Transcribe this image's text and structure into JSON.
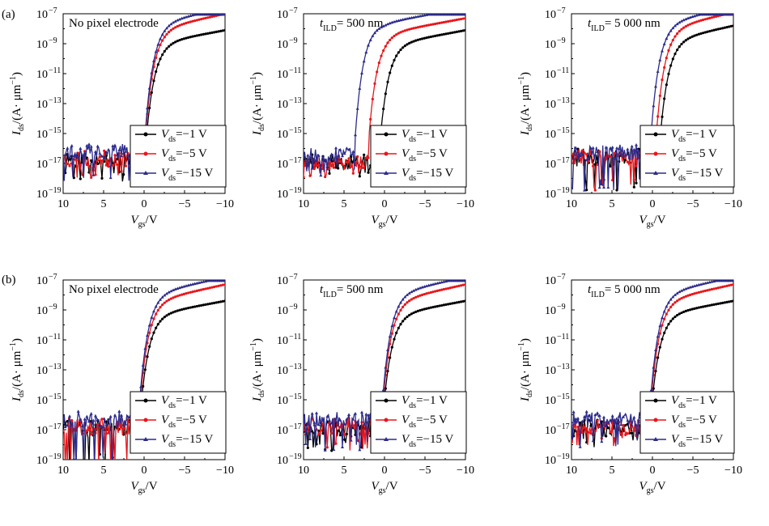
{
  "figure": {
    "row_labels": [
      "(a)",
      "(b)"
    ]
  },
  "chart_data": [
    {
      "type": "line",
      "row": 0,
      "col": 0,
      "title": "No pixel electrode",
      "title_main": "No pixel electrode",
      "title_sub": "",
      "title_tail": "",
      "ylabel_main": "I",
      "ylabel_sub": "ds",
      "ylabel_tail": "/(A· μm",
      "xlabel_main": "V",
      "xlabel_sub": "gs",
      "xlabel_tail": "/V",
      "xlim": [
        10,
        -10
      ],
      "ylim_exp": [
        -19,
        -7
      ],
      "ylog": true,
      "x_reversed": true,
      "xticks": [
        10,
        5,
        0,
        -5,
        -10
      ],
      "xtick_labels": [
        "10",
        "5",
        "0",
        "−5",
        "−10"
      ],
      "yticks_exp": [
        -19,
        -17,
        -15,
        -13,
        -11,
        -9,
        -7
      ],
      "ytick_labels": [
        "10",
        "10",
        "10",
        "10",
        "10",
        "10",
        "10"
      ],
      "ytick_exp_labels": [
        "−19",
        "−17",
        "−15",
        "−13",
        "−11",
        "−9",
        "−7"
      ],
      "legend_position": "bottom-right",
      "series": [
        {
          "name": "Vds=−1 V",
          "name_main": "V",
          "name_sub": "ds",
          "name_tail": "=−1 V",
          "color": "#000000",
          "marker": "circle",
          "noise_center": -16.7,
          "noise_amp": 0.55,
          "noise_floor": -18.2,
          "vth": -0.1,
          "slope": 2.2,
          "sat": -9.1,
          "sat_slope": 0.1,
          "seed": 11
        },
        {
          "name": "Vds=−5 V",
          "name_main": "V",
          "name_sub": "ds",
          "name_tail": "=−5 V",
          "color": "#e8161b",
          "marker": "circle",
          "noise_center": -16.7,
          "noise_amp": 0.55,
          "noise_floor": -18.2,
          "vth": -0.1,
          "slope": 2.2,
          "sat": -8.2,
          "sat_slope": 0.12,
          "seed": 23
        },
        {
          "name": "Vds=−15 V",
          "name_main": "V",
          "name_sub": "ds",
          "name_tail": "=−15 V",
          "color": "#2b2b8c",
          "marker": "triangle",
          "noise_center": -16.2,
          "noise_amp": 0.5,
          "noise_floor": -18.2,
          "vth": -0.1,
          "slope": 2.2,
          "sat": -7.8,
          "sat_slope": 0.12,
          "seed": 37
        }
      ]
    },
    {
      "type": "line",
      "row": 0,
      "col": 1,
      "title": "tILD= 500 nm",
      "title_main": "t",
      "title_sub": "ILD",
      "title_tail": "= 500 nm",
      "ylabel_main": "I",
      "ylabel_sub": "ds",
      "ylabel_tail": "/(A· μm",
      "xlabel_main": "V",
      "xlabel_sub": "gs",
      "xlabel_tail": "/V",
      "xlim": [
        10,
        -10
      ],
      "ylim_exp": [
        -19,
        -7
      ],
      "ylog": true,
      "x_reversed": true,
      "xticks": [
        10,
        5,
        0,
        -5,
        -10
      ],
      "xtick_labels": [
        "10",
        "5",
        "0",
        "−5",
        "−10"
      ],
      "yticks_exp": [
        -19,
        -17,
        -15,
        -13,
        -11,
        -9,
        -7
      ],
      "ytick_labels": [
        "10",
        "10",
        "10",
        "10",
        "10",
        "10",
        "10"
      ],
      "ytick_exp_labels": [
        "−19",
        "−17",
        "−15",
        "−13",
        "−11",
        "−9",
        "−7"
      ],
      "legend_position": "bottom-right",
      "series": [
        {
          "name": "Vds=−1 V",
          "name_main": "V",
          "name_sub": "ds",
          "name_tail": "=−1 V",
          "color": "#000000",
          "marker": "circle",
          "noise_center": -16.9,
          "noise_amp": 0.5,
          "noise_floor": -18.0,
          "vth": 0.7,
          "slope": 2.0,
          "sat": -9.1,
          "sat_slope": 0.1,
          "seed": 41
        },
        {
          "name": "Vds=−5 V",
          "name_main": "V",
          "name_sub": "ds",
          "name_tail": "=−5 V",
          "color": "#e8161b",
          "marker": "circle",
          "noise_center": -16.9,
          "noise_amp": 0.5,
          "noise_floor": -18.0,
          "vth": 2.0,
          "slope": 2.0,
          "sat": -8.3,
          "sat_slope": 0.1,
          "seed": 53
        },
        {
          "name": "Vds=−15 V",
          "name_main": "V",
          "name_sub": "ds",
          "name_tail": "=−15 V",
          "color": "#2b2b8c",
          "marker": "triangle",
          "noise_center": -16.4,
          "noise_amp": 0.45,
          "noise_floor": -18.0,
          "vth": 3.6,
          "slope": 2.0,
          "sat": -7.6,
          "sat_slope": 0.1,
          "seed": 67
        }
      ]
    },
    {
      "type": "line",
      "row": 0,
      "col": 2,
      "title": "tILD= 5 000 nm",
      "title_main": "t",
      "title_sub": "ILD",
      "title_tail": "= 5 000 nm",
      "ylabel_main": "I",
      "ylabel_sub": "ds",
      "ylabel_tail": "/(A· μm",
      "xlabel_main": "V",
      "xlabel_sub": "gs",
      "xlabel_tail": "/V",
      "xlim": [
        10,
        -10
      ],
      "ylim_exp": [
        -19,
        -7
      ],
      "ylog": true,
      "x_reversed": true,
      "xticks": [
        10,
        5,
        0,
        -5,
        -10
      ],
      "xtick_labels": [
        "10",
        "5",
        "0",
        "−5",
        "−10"
      ],
      "yticks_exp": [
        -19,
        -17,
        -15,
        -13,
        -11,
        -9,
        -7
      ],
      "ytick_labels": [
        "10",
        "10",
        "10",
        "10",
        "10",
        "10",
        "10"
      ],
      "ytick_exp_labels": [
        "−19",
        "−17",
        "−15",
        "−13",
        "−11",
        "−9",
        "−7"
      ],
      "legend_position": "bottom-right",
      "series": [
        {
          "name": "Vds=−1 V",
          "name_main": "V",
          "name_sub": "ds",
          "name_tail": "=−1 V",
          "color": "#000000",
          "marker": "circle",
          "noise_center": -16.6,
          "noise_amp": 0.6,
          "noise_floor": -18.8,
          "vth": -0.8,
          "slope": 2.3,
          "sat": -9.0,
          "sat_slope": 0.12,
          "seed": 71
        },
        {
          "name": "Vds=−5 V",
          "name_main": "V",
          "name_sub": "ds",
          "name_tail": "=−5 V",
          "color": "#e8161b",
          "marker": "circle",
          "noise_center": -16.6,
          "noise_amp": 0.6,
          "noise_floor": -18.8,
          "vth": -0.4,
          "slope": 2.3,
          "sat": -8.2,
          "sat_slope": 0.13,
          "seed": 83
        },
        {
          "name": "Vds=−15 V",
          "name_main": "V",
          "name_sub": "ds",
          "name_tail": "=−15 V",
          "color": "#2b2b8c",
          "marker": "triangle",
          "noise_center": -16.3,
          "noise_amp": 0.55,
          "noise_floor": -18.8,
          "vth": 0.2,
          "slope": 2.3,
          "sat": -7.8,
          "sat_slope": 0.13,
          "seed": 97
        }
      ]
    },
    {
      "type": "line",
      "row": 1,
      "col": 0,
      "title": "No pixel electrode",
      "title_main": "No pixel electrode",
      "title_sub": "",
      "title_tail": "",
      "ylabel_main": "I",
      "ylabel_sub": "ds",
      "ylabel_tail": "/(A· μm",
      "xlabel_main": "V",
      "xlabel_sub": "gs",
      "xlabel_tail": "/V",
      "xlim": [
        10,
        -10
      ],
      "ylim_exp": [
        -19,
        -7
      ],
      "ylog": true,
      "x_reversed": true,
      "xticks": [
        10,
        5,
        0,
        -5,
        -10
      ],
      "xtick_labels": [
        "10",
        "5",
        "0",
        "−5",
        "−10"
      ],
      "yticks_exp": [
        -19,
        -17,
        -15,
        -13,
        -11,
        -9,
        -7
      ],
      "ytick_labels": [
        "10",
        "10",
        "10",
        "10",
        "10",
        "10",
        "10"
      ],
      "ytick_exp_labels": [
        "−19",
        "−17",
        "−15",
        "−13",
        "−11",
        "−9",
        "−7"
      ],
      "legend_position": "bottom-right",
      "series": [
        {
          "name": "Vds=−1 V",
          "name_main": "V",
          "name_sub": "ds",
          "name_tail": "=−1 V",
          "color": "#000000",
          "marker": "circle",
          "noise_center": -16.9,
          "noise_amp": 0.6,
          "noise_floor": -19.4,
          "vth": 0.6,
          "slope": 2.2,
          "sat": -9.4,
          "sat_slope": 0.1,
          "seed": 101
        },
        {
          "name": "Vds=−5 V",
          "name_main": "V",
          "name_sub": "ds",
          "name_tail": "=−5 V",
          "color": "#e8161b",
          "marker": "circle",
          "noise_center": -16.8,
          "noise_amp": 0.6,
          "noise_floor": -19.4,
          "vth": 0.6,
          "slope": 2.2,
          "sat": -8.5,
          "sat_slope": 0.12,
          "seed": 113
        },
        {
          "name": "Vds=−15 V",
          "name_main": "V",
          "name_sub": "ds",
          "name_tail": "=−15 V",
          "color": "#2b2b8c",
          "marker": "triangle",
          "noise_center": -16.3,
          "noise_amp": 0.55,
          "noise_floor": -19.4,
          "vth": 0.6,
          "slope": 2.2,
          "sat": -8.0,
          "sat_slope": 0.12,
          "seed": 127
        }
      ]
    },
    {
      "type": "line",
      "row": 1,
      "col": 1,
      "title": "tILD= 500 nm",
      "title_main": "t",
      "title_sub": "ILD",
      "title_tail": "= 500 nm",
      "ylabel_main": "I",
      "ylabel_sub": "ds",
      "ylabel_tail": "/(A· μm",
      "xlabel_main": "V",
      "xlabel_sub": "gs",
      "xlabel_tail": "/V",
      "xlim": [
        10,
        -10
      ],
      "ylim_exp": [
        -19,
        -7
      ],
      "ylog": true,
      "x_reversed": true,
      "xticks": [
        10,
        5,
        0,
        -5,
        -10
      ],
      "xtick_labels": [
        "10",
        "5",
        "0",
        "−5",
        "−10"
      ],
      "yticks_exp": [
        -19,
        -17,
        -15,
        -13,
        -11,
        -9,
        -7
      ],
      "ytick_labels": [
        "10",
        "10",
        "10",
        "10",
        "10",
        "10",
        "10"
      ],
      "ytick_exp_labels": [
        "−19",
        "−17",
        "−15",
        "−13",
        "−11",
        "−9",
        "−7"
      ],
      "legend_position": "bottom-right",
      "series": [
        {
          "name": "Vds=−1 V",
          "name_main": "V",
          "name_sub": "ds",
          "name_tail": "=−1 V",
          "color": "#000000",
          "marker": "circle",
          "noise_center": -16.9,
          "noise_amp": 0.55,
          "noise_floor": -18.4,
          "vth": 0.3,
          "slope": 2.2,
          "sat": -9.4,
          "sat_slope": 0.1,
          "seed": 131
        },
        {
          "name": "Vds=−5 V",
          "name_main": "V",
          "name_sub": "ds",
          "name_tail": "=−5 V",
          "color": "#e8161b",
          "marker": "circle",
          "noise_center": -16.8,
          "noise_amp": 0.55,
          "noise_floor": -18.4,
          "vth": 0.3,
          "slope": 2.2,
          "sat": -8.5,
          "sat_slope": 0.12,
          "seed": 139
        },
        {
          "name": "Vds=−15 V",
          "name_main": "V",
          "name_sub": "ds",
          "name_tail": "=−15 V",
          "color": "#2b2b8c",
          "marker": "triangle",
          "noise_center": -16.3,
          "noise_amp": 0.5,
          "noise_floor": -18.4,
          "vth": 0.3,
          "slope": 2.2,
          "sat": -8.0,
          "sat_slope": 0.12,
          "seed": 149
        }
      ]
    },
    {
      "type": "line",
      "row": 1,
      "col": 2,
      "title": "tILD= 5 000 nm",
      "title_main": "t",
      "title_sub": "ILD",
      "title_tail": "= 5 000 nm",
      "ylabel_main": "I",
      "ylabel_sub": "ds",
      "ylabel_tail": "/(A· μm",
      "xlabel_main": "V",
      "xlabel_sub": "gs",
      "xlabel_tail": "/V",
      "xlim": [
        10,
        -10
      ],
      "ylim_exp": [
        -19,
        -7
      ],
      "ylog": true,
      "x_reversed": true,
      "xticks": [
        10,
        5,
        0,
        -5,
        -10
      ],
      "xtick_labels": [
        "10",
        "5",
        "0",
        "−5",
        "−10"
      ],
      "yticks_exp": [
        -19,
        -17,
        -15,
        -13,
        -11,
        -9,
        -7
      ],
      "ytick_labels": [
        "10",
        "10",
        "10",
        "10",
        "10",
        "10",
        "10"
      ],
      "ytick_exp_labels": [
        "−19",
        "−17",
        "−15",
        "−13",
        "−11",
        "−9",
        "−7"
      ],
      "legend_position": "bottom-right",
      "series": [
        {
          "name": "Vds=−1 V",
          "name_main": "V",
          "name_sub": "ds",
          "name_tail": "=−1 V",
          "color": "#000000",
          "marker": "circle",
          "noise_center": -16.9,
          "noise_amp": 0.55,
          "noise_floor": -18.2,
          "vth": 0.3,
          "slope": 2.2,
          "sat": -9.4,
          "sat_slope": 0.1,
          "seed": 151
        },
        {
          "name": "Vds=−5 V",
          "name_main": "V",
          "name_sub": "ds",
          "name_tail": "=−5 V",
          "color": "#e8161b",
          "marker": "circle",
          "noise_center": -16.8,
          "noise_amp": 0.55,
          "noise_floor": -18.2,
          "vth": 0.3,
          "slope": 2.2,
          "sat": -8.5,
          "sat_slope": 0.12,
          "seed": 163
        },
        {
          "name": "Vds=−15 V",
          "name_main": "V",
          "name_sub": "ds",
          "name_tail": "=−15 V",
          "color": "#2b2b8c",
          "marker": "triangle",
          "noise_center": -16.3,
          "noise_amp": 0.5,
          "noise_floor": -18.2,
          "vth": 0.3,
          "slope": 2.2,
          "sat": -8.0,
          "sat_slope": 0.12,
          "seed": 173
        }
      ]
    }
  ]
}
